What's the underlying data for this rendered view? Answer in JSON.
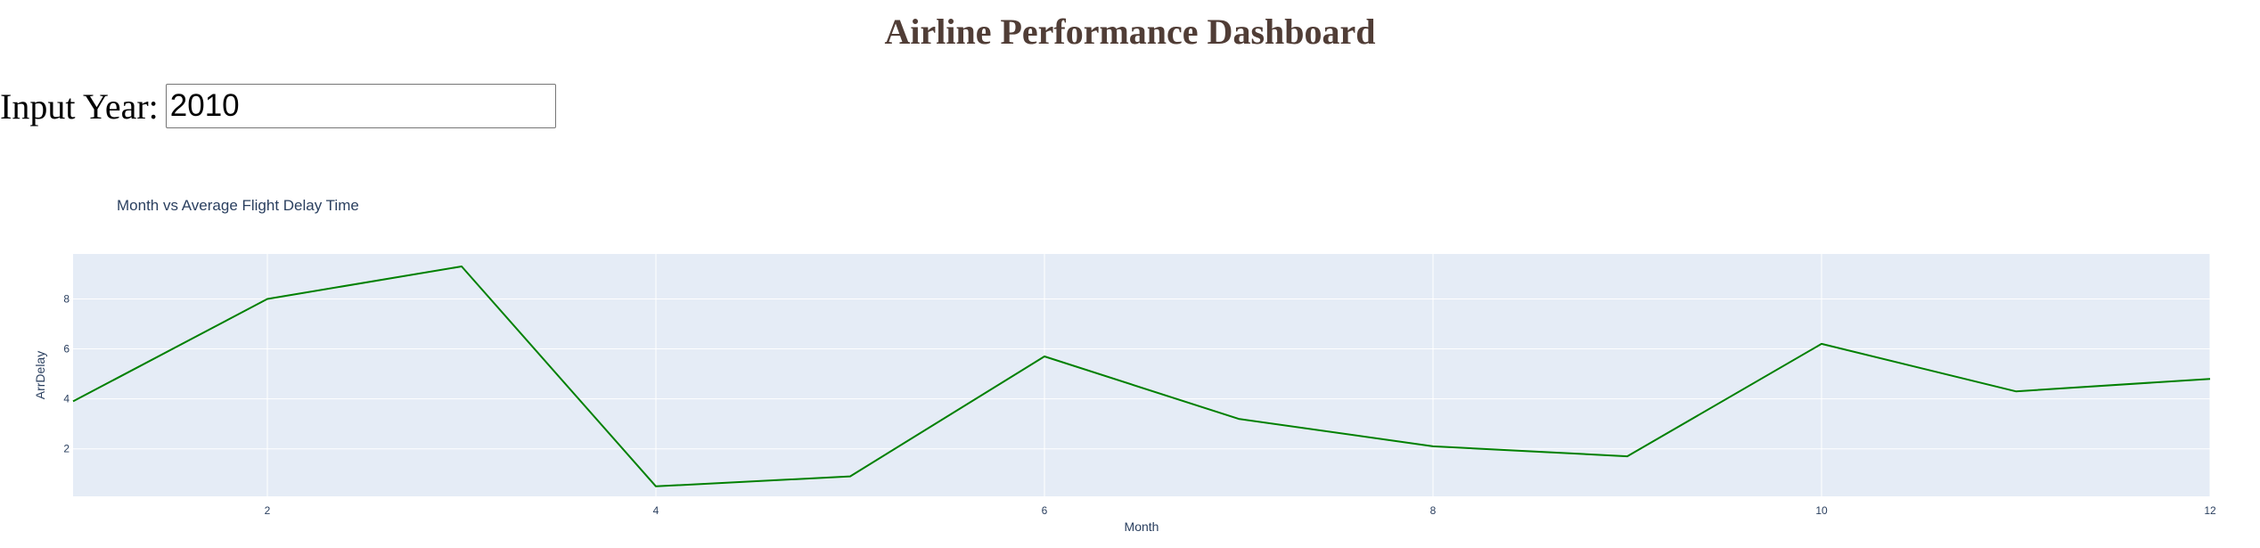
{
  "page_title": "Airline Performance Dashboard",
  "year_input": {
    "label": "Input Year:",
    "value": "2010"
  },
  "colors": {
    "title": "#503D36",
    "plot_background": "#E5ECF6",
    "line": "#008000",
    "text": "#2a3f5f"
  },
  "chart_data": {
    "type": "line",
    "title": "Month vs Average Flight Delay Time",
    "xlabel": "Month",
    "ylabel": "ArrDelay",
    "x": [
      1,
      2,
      3,
      4,
      5,
      6,
      7,
      8,
      9,
      10,
      11,
      12
    ],
    "series": [
      {
        "values": [
          3.9,
          8.0,
          9.3,
          0.5,
          0.9,
          5.7,
          3.2,
          2.1,
          1.7,
          6.2,
          4.3,
          4.8
        ]
      }
    ],
    "xlim": [
      1,
      12
    ],
    "ylim": [
      0.1,
      9.8
    ],
    "xticks": [
      2,
      4,
      6,
      8,
      10,
      12
    ],
    "yticks": [
      2,
      4,
      6,
      8
    ],
    "grid": true,
    "legend": "none"
  }
}
